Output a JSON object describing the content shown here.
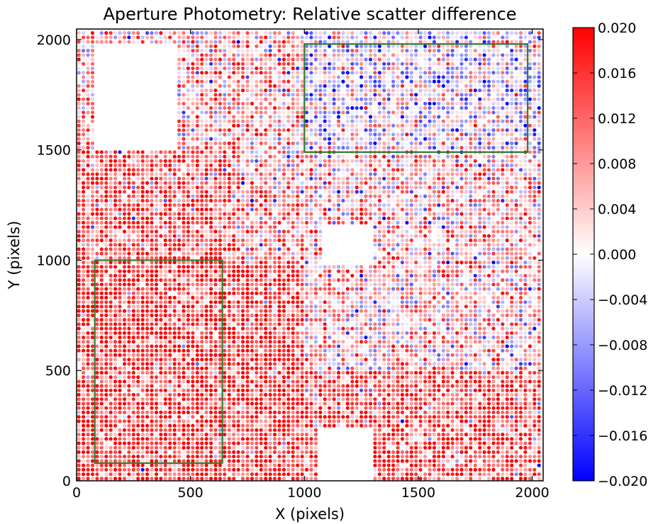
{
  "chart_data": {
    "type": "scatter",
    "title": "Aperture Photometry: Relative scatter difference",
    "xlabel": "X (pixels)",
    "ylabel": "Y (pixels)",
    "xlim": [
      0,
      2048
    ],
    "ylim": [
      0,
      2048
    ],
    "x_ticks": [
      0,
      500,
      1000,
      1500,
      2000
    ],
    "y_ticks": [
      0,
      500,
      1000,
      1500,
      2000
    ],
    "x_tick_labels": [
      "0",
      "500",
      "1000",
      "1500",
      "2000"
    ],
    "y_tick_labels": [
      "0",
      "500",
      "1000",
      "1500",
      "2000"
    ],
    "grid": false,
    "colormap": "bwr",
    "color_range": [
      -0.02,
      0.02
    ],
    "colorbar_ticks": [
      0.02,
      0.016,
      0.012,
      0.008,
      0.004,
      0.0,
      -0.004,
      -0.008,
      -0.012,
      -0.016,
      -0.02
    ],
    "colorbar_tick_labels": [
      "0.020",
      "0.016",
      "0.012",
      "0.008",
      "0.004",
      "0.000",
      "−0.004",
      "−0.008",
      "−0.012",
      "−0.016",
      "−0.020"
    ],
    "grid_spacing": 20,
    "empty_regions": [
      {
        "x": [
          90,
          430
        ],
        "y": [
          1500,
          1970
        ]
      },
      {
        "x": [
          1060,
          1290
        ],
        "y": [
          0,
          240
        ]
      },
      {
        "x": [
          1080,
          1300
        ],
        "y": [
          980,
          1160
        ]
      }
    ],
    "boxes": [
      {
        "x": [
          80,
          640
        ],
        "y": [
          80,
          1000
        ],
        "color": "#2e7d32"
      },
      {
        "x": [
          1000,
          1980
        ],
        "y": [
          1490,
          1980
        ],
        "color": "#2e7d32"
      }
    ],
    "value_field": [
      {
        "region": "lower-left",
        "x": [
          0,
          1000
        ],
        "y": [
          0,
          1000
        ],
        "mean": 0.015
      },
      {
        "region": "left-middle",
        "x": [
          0,
          700
        ],
        "y": [
          1000,
          1500
        ],
        "mean": 0.012
      },
      {
        "region": "top-left",
        "x": [
          0,
          1000
        ],
        "y": [
          1500,
          2048
        ],
        "mean": 0.006
      },
      {
        "region": "top-right",
        "x": [
          1000,
          2048
        ],
        "y": [
          1500,
          2048
        ],
        "mean": -0.002
      },
      {
        "region": "right-middle",
        "x": [
          1000,
          2048
        ],
        "y": [
          500,
          1500
        ],
        "mean": 0.004
      },
      {
        "region": "lower-right",
        "x": [
          1000,
          2048
        ],
        "y": [
          0,
          500
        ],
        "mean": 0.012
      }
    ]
  }
}
